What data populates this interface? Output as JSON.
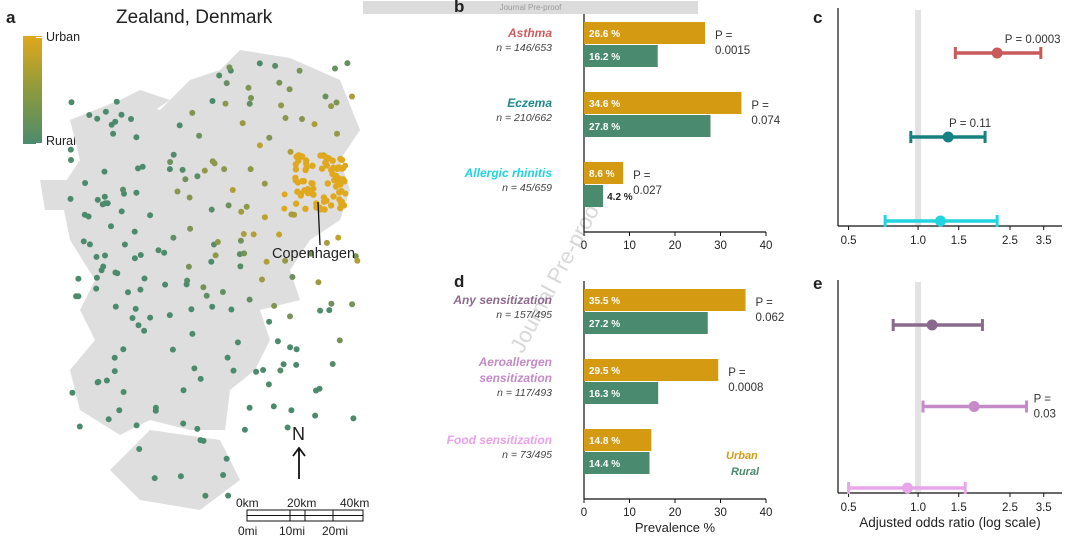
{
  "banner": "Journal Pre-proof",
  "watermark": "Journal Pre-proof",
  "panels": {
    "a": "a",
    "b": "b",
    "c": "c",
    "d": "d",
    "e": "e"
  },
  "map": {
    "title": "Zealand, Denmark",
    "legend_top": "Urban",
    "legend_bottom": "Rural",
    "city_label": "Copenhagen",
    "north": "N",
    "scale_km": [
      "0km",
      "20km",
      "40km"
    ],
    "scale_mi": [
      "0mi",
      "10mi",
      "20mi"
    ],
    "colors": {
      "urban": "#e0a81c",
      "rural": "#4c8a6e",
      "land": "#dedede"
    }
  },
  "chart_data": [
    {
      "type": "bar",
      "panel": "b",
      "orientation": "horizontal",
      "categories": [
        "Asthma",
        "Eczema",
        "Allergic rhinitis"
      ],
      "category_colors": [
        "#cd5c5c",
        "#1f8a8a",
        "#1fd3df"
      ],
      "n_labels": [
        "n = 146/653",
        "n = 210/662",
        "n = 45/659"
      ],
      "series": [
        {
          "name": "Urban",
          "color": "#d49b12",
          "values": [
            26.6,
            34.6,
            8.6
          ],
          "labels": [
            "26.6 %",
            "34.6 %",
            "8.6 %"
          ]
        },
        {
          "name": "Rural",
          "color": "#4a8a6e",
          "values": [
            16.2,
            27.8,
            4.2
          ],
          "labels": [
            "16.2 %",
            "27.8 %",
            "4.2 %"
          ]
        }
      ],
      "p_values": [
        [
          "P =",
          "0.0015"
        ],
        [
          "P =",
          "0.074"
        ],
        [
          "P =",
          "0.027"
        ]
      ],
      "xlim": [
        0,
        40
      ],
      "xticks": [
        "0",
        "10",
        "20",
        "30",
        "40"
      ],
      "xlabel": ""
    },
    {
      "type": "bar",
      "panel": "d",
      "orientation": "horizontal",
      "categories": [
        "Any sensitization",
        "Aeroallergen sensitization",
        "Food sensitization"
      ],
      "category_lines": [
        [
          "Any sensitization"
        ],
        [
          "Aeroallergen",
          "sensitization"
        ],
        [
          "Food sensitization"
        ]
      ],
      "category_colors": [
        "#8e6a8e",
        "#c48ac8",
        "#eaa0ea"
      ],
      "n_labels": [
        "n = 157/495",
        "n = 117/493",
        "n = 73/495"
      ],
      "series": [
        {
          "name": "Urban",
          "color": "#d49b12",
          "values": [
            35.5,
            29.5,
            14.8
          ],
          "labels": [
            "35.5 %",
            "29.5 %",
            "14.8 %"
          ]
        },
        {
          "name": "Rural",
          "color": "#4a8a6e",
          "values": [
            27.2,
            16.3,
            14.4
          ],
          "labels": [
            "27.2 %",
            "16.3 %",
            "14.4 %"
          ]
        }
      ],
      "p_values": [
        [
          "P =",
          "0.062"
        ],
        [
          "P =",
          "0.0008"
        ],
        []
      ],
      "xlim": [
        0,
        40
      ],
      "xticks": [
        "0",
        "10",
        "20",
        "30",
        "40"
      ],
      "xlabel": "Prevalence %"
    },
    {
      "type": "forest",
      "panel": "c",
      "scale": "log",
      "xlim": [
        0.45,
        4.2
      ],
      "xticks": [
        0.5,
        1.0,
        1.5,
        2.5,
        3.5
      ],
      "xtick_labels": [
        "0.5",
        "1.0",
        "1.5",
        "2.5",
        "3.5"
      ],
      "reference": 1.0,
      "rows": [
        {
          "or": 2.2,
          "lo": 1.45,
          "hi": 3.4,
          "color": "#c85a5a",
          "p": "P = 0.0003"
        },
        {
          "or": 1.35,
          "lo": 0.93,
          "hi": 1.95,
          "color": "#178080",
          "p": "P = 0.11"
        },
        {
          "or": 1.25,
          "lo": 0.72,
          "hi": 2.2,
          "color": "#22d4e0",
          "p": ""
        }
      ],
      "xlabel": ""
    },
    {
      "type": "forest",
      "panel": "e",
      "scale": "log",
      "xlim": [
        0.45,
        4.2
      ],
      "xticks": [
        0.5,
        1.0,
        1.5,
        2.5,
        3.5
      ],
      "xtick_labels": [
        "0.5",
        "1.0",
        "1.5",
        "2.5",
        "3.5"
      ],
      "reference": 1.0,
      "rows": [
        {
          "or": 1.15,
          "lo": 0.78,
          "hi": 1.9,
          "color": "#8a6a8c",
          "p": ""
        },
        {
          "or": 1.75,
          "lo": 1.05,
          "hi": 2.95,
          "color": "#c58ac8",
          "p": [
            "P =",
            "0.03"
          ]
        },
        {
          "or": 0.9,
          "lo": 0.5,
          "hi": 1.6,
          "color": "#e8a6ea",
          "p": ""
        }
      ],
      "xlabel": "Adjusted odds ratio (log scale)"
    }
  ],
  "bar_legend": {
    "urban": "Urban",
    "rural": "Rural"
  }
}
